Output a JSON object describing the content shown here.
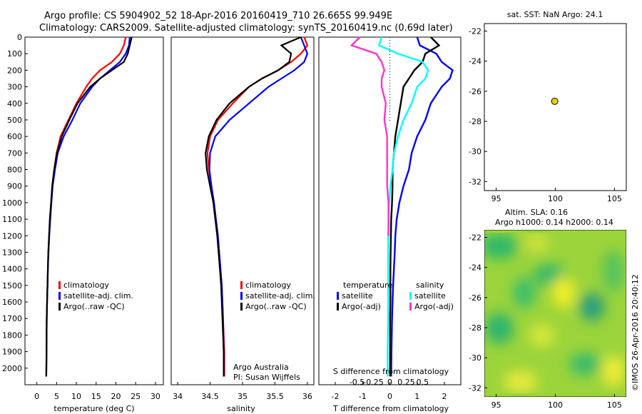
{
  "header": {
    "title_line1": "Argo profile: CS 5904902_52 18-Apr-2016 20160419_710 26.665S 99.949E",
    "title_line2": "Climatology: CARS2009. Satellite-adjusted climatology: synTS_20160419.nc (0.69d later)"
  },
  "colors": {
    "climatology": "#ff0000",
    "satellite": "#0000ff",
    "argo": "#000000",
    "sat_salinity": "#00ffff",
    "argo_salinity": "#ff33cc",
    "map_dot": "#e8d200"
  },
  "chart_data": [
    {
      "type": "line",
      "id": "temperature",
      "xlabel": "temperature (deg C)",
      "xticks": [
        "0",
        "5",
        "10",
        "15",
        "20",
        "25",
        "30"
      ],
      "xlim": [
        -3,
        32
      ],
      "ylim": [
        2100,
        0
      ],
      "yticks": [
        "0",
        "100",
        "200",
        "300",
        "400",
        "500",
        "600",
        "700",
        "800",
        "900",
        "1000",
        "1100",
        "1200",
        "1300",
        "1400",
        "1500",
        "1600",
        "1700",
        "1800",
        "1900",
        "2000"
      ],
      "series": [
        {
          "name": "climatology",
          "x": [
            22.5,
            22,
            21,
            19,
            16,
            14,
            12.5,
            10,
            8,
            6,
            5,
            4.4,
            3.9,
            3.6,
            3.3,
            3.1,
            2.9,
            2.8,
            2.7,
            2.6,
            2.5,
            2.45,
            2.4
          ],
          "y": [
            0,
            50,
            100,
            150,
            200,
            250,
            300,
            400,
            500,
            600,
            700,
            800,
            900,
            1000,
            1100,
            1200,
            1300,
            1400,
            1500,
            1600,
            1700,
            1900,
            2050
          ]
        },
        {
          "name": "satellite-adj. clim.",
          "x": [
            23.5,
            23.3,
            22.5,
            21,
            18.5,
            16,
            14,
            11,
            9,
            6.8,
            5.3,
            4.6,
            4,
            3.7,
            3.4,
            3.15,
            2.95,
            2.8,
            2.7,
            2.6,
            2.5,
            2.45,
            2.4
          ],
          "y": [
            0,
            50,
            100,
            150,
            200,
            250,
            300,
            400,
            500,
            600,
            700,
            800,
            900,
            1000,
            1100,
            1200,
            1300,
            1400,
            1500,
            1600,
            1700,
            1900,
            2050
          ]
        },
        {
          "name": "Argo(..raw -QC)",
          "x": [
            24,
            23.5,
            23,
            22,
            19,
            16,
            13.5,
            10.3,
            8.2,
            6.3,
            5.1,
            4.4,
            3.9,
            3.6,
            3.3,
            3.1,
            2.9,
            2.8,
            2.7,
            2.6,
            2.5,
            2.45,
            2.4
          ],
          "y": [
            0,
            50,
            100,
            150,
            200,
            250,
            300,
            400,
            500,
            600,
            700,
            800,
            900,
            1000,
            1100,
            1200,
            1300,
            1400,
            1500,
            1600,
            1700,
            1900,
            2050
          ]
        }
      ],
      "legend": [
        "climatology",
        "satellite-adj. clim.",
        "Argo(..raw -QC)"
      ]
    },
    {
      "type": "line",
      "id": "salinity",
      "xlabel": "salinity",
      "xticks": [
        "34",
        "34.5",
        "35",
        "35.5",
        "36"
      ],
      "xlim": [
        33.9,
        36.1
      ],
      "ylim": [
        2100,
        0
      ],
      "series": [
        {
          "name": "climatology",
          "x": [
            35.95,
            36.0,
            35.9,
            35.75,
            35.55,
            35.3,
            35.1,
            34.85,
            34.62,
            34.5,
            34.46,
            34.48,
            34.52,
            34.56,
            34.59,
            34.62,
            34.64,
            34.66,
            34.68,
            34.69,
            34.7,
            34.72,
            34.72
          ],
          "y": [
            0,
            50,
            100,
            150,
            200,
            250,
            300,
            400,
            500,
            600,
            700,
            800,
            900,
            1000,
            1100,
            1200,
            1300,
            1400,
            1500,
            1600,
            1700,
            1900,
            2050
          ]
        },
        {
          "name": "satellite-adj. clim.",
          "x": [
            35.9,
            35.95,
            36.0,
            35.95,
            35.8,
            35.6,
            35.4,
            35.1,
            34.8,
            34.58,
            34.5,
            34.49,
            34.52,
            34.56,
            34.59,
            34.62,
            34.64,
            34.66,
            34.68,
            34.69,
            34.7,
            34.71,
            34.71
          ],
          "y": [
            0,
            50,
            100,
            150,
            200,
            250,
            300,
            400,
            500,
            600,
            700,
            800,
            900,
            1000,
            1100,
            1200,
            1300,
            1400,
            1500,
            1600,
            1700,
            1900,
            2050
          ]
        },
        {
          "name": "Argo(..raw -QC)",
          "x": [
            35.9,
            35.6,
            35.75,
            35.72,
            35.55,
            35.3,
            35.1,
            34.8,
            34.6,
            34.48,
            34.43,
            34.45,
            34.5,
            34.55,
            34.58,
            34.61,
            34.63,
            34.65,
            34.67,
            34.68,
            34.69,
            34.71,
            34.71
          ],
          "y": [
            0,
            50,
            100,
            150,
            200,
            250,
            300,
            400,
            500,
            600,
            700,
            800,
            900,
            1000,
            1100,
            1200,
            1300,
            1400,
            1500,
            1600,
            1700,
            1900,
            2050
          ]
        }
      ],
      "legend": [
        "climatology",
        "satellite-adj. clim.",
        "Argo(..raw -QC)"
      ],
      "annotation": [
        "Argo Australia",
        "PI: Susan Wijffels"
      ]
    },
    {
      "type": "line",
      "id": "difference",
      "xlabel": "T difference from climatology",
      "xlabel_top": "S difference from climatology",
      "xticks_T": [
        "-2",
        "-1",
        "0",
        "1",
        "2"
      ],
      "xticks_S": [
        "-0.5",
        "-0.25",
        "0",
        "0.25",
        "0.5"
      ],
      "xlim_T": [
        -2.6,
        2.6
      ],
      "ylim": [
        2100,
        0
      ],
      "series": [
        {
          "name": "T satellite",
          "x": [
            1.0,
            1.1,
            1.7,
            1.9,
            2.3,
            2.2,
            1.9,
            1.5,
            1.3,
            1.0,
            0.8,
            0.7,
            0.5,
            0.35,
            0.25,
            0.2,
            0.18,
            0.15,
            0.12,
            0.1,
            0.08,
            0.06,
            0.05
          ],
          "y": [
            0,
            50,
            100,
            150,
            200,
            250,
            300,
            400,
            500,
            600,
            700,
            800,
            900,
            1000,
            1100,
            1200,
            1300,
            1400,
            1500,
            1600,
            1700,
            1900,
            2050
          ]
        },
        {
          "name": "T Argo(-adj)",
          "x": [
            1.5,
            1.8,
            1.3,
            1.2,
            0.9,
            0.7,
            0.5,
            0.4,
            0.3,
            0.2,
            0.15,
            0.1,
            0.1,
            0.08,
            0.05,
            0.04,
            0.03,
            0.02,
            0.02,
            0.02,
            0.01,
            0.01,
            0.01
          ],
          "y": [
            0,
            50,
            100,
            150,
            200,
            250,
            300,
            400,
            500,
            600,
            700,
            800,
            900,
            1000,
            1100,
            1200,
            1300,
            1400,
            1500,
            1600,
            1700,
            1900,
            2050
          ]
        },
        {
          "name": "S satellite",
          "x": [
            -0.3,
            -0.4,
            0.3,
            1.2,
            1.4,
            1.3,
            1.0,
            0.8,
            0.5,
            0.3,
            0.15,
            0.1,
            0.02,
            -0.02,
            -0.05,
            -0.06,
            -0.06,
            -0.06,
            -0.06,
            -0.06,
            -0.06,
            -0.08,
            -0.08
          ],
          "y": [
            0,
            50,
            100,
            150,
            200,
            250,
            300,
            400,
            500,
            600,
            700,
            800,
            900,
            1000,
            1100,
            1200,
            1300,
            1400,
            1500,
            1600,
            1700,
            1900,
            2050
          ]
        },
        {
          "name": "S Argo(-adj)",
          "x": [
            -1.1,
            -1.4,
            -0.5,
            -0.3,
            -0.2,
            -0.3,
            -0.3,
            -0.15,
            -0.2,
            -0.1,
            -0.1,
            -0.1,
            -0.1,
            -0.05,
            -0.05,
            -0.05
          ],
          "y": [
            0,
            50,
            100,
            150,
            200,
            250,
            300,
            400,
            500,
            600,
            700,
            800,
            900,
            1000,
            1100,
            1200
          ]
        }
      ],
      "legend_temperature_title": "temperature",
      "legend_salinity_title": "salinity",
      "legend_temperature": [
        "satellite",
        "Argo(-adj)"
      ],
      "legend_salinity": [
        "satellite",
        "Argo(-adj)"
      ]
    },
    {
      "type": "scatter",
      "id": "sst-map",
      "title": "sat. SST: NaN Argo: 24.1",
      "xticks": [
        "95",
        "100",
        "105"
      ],
      "yticks": [
        "-22",
        "-24",
        "-26",
        "-28",
        "-30",
        "-32"
      ],
      "xlim": [
        94,
        106
      ],
      "ylim": [
        -32.6,
        -21.5
      ],
      "points": [
        {
          "x": 99.949,
          "y": -26.665
        }
      ]
    },
    {
      "type": "heatmap",
      "id": "sla-map",
      "title_line1": "Altim. SLA: 0.16",
      "title_line2": "Argo h1000: 0.14 h2000: 0.14",
      "xticks": [
        "95",
        "100",
        "105"
      ],
      "yticks": [
        "-22",
        "-24",
        "-26",
        "-28",
        "-30",
        "-32"
      ],
      "xlim": [
        94,
        106
      ],
      "ylim": [
        -32.6,
        -21.5
      ]
    }
  ],
  "watermark": "©IMOS 26-Apr-2016 20:40:12"
}
